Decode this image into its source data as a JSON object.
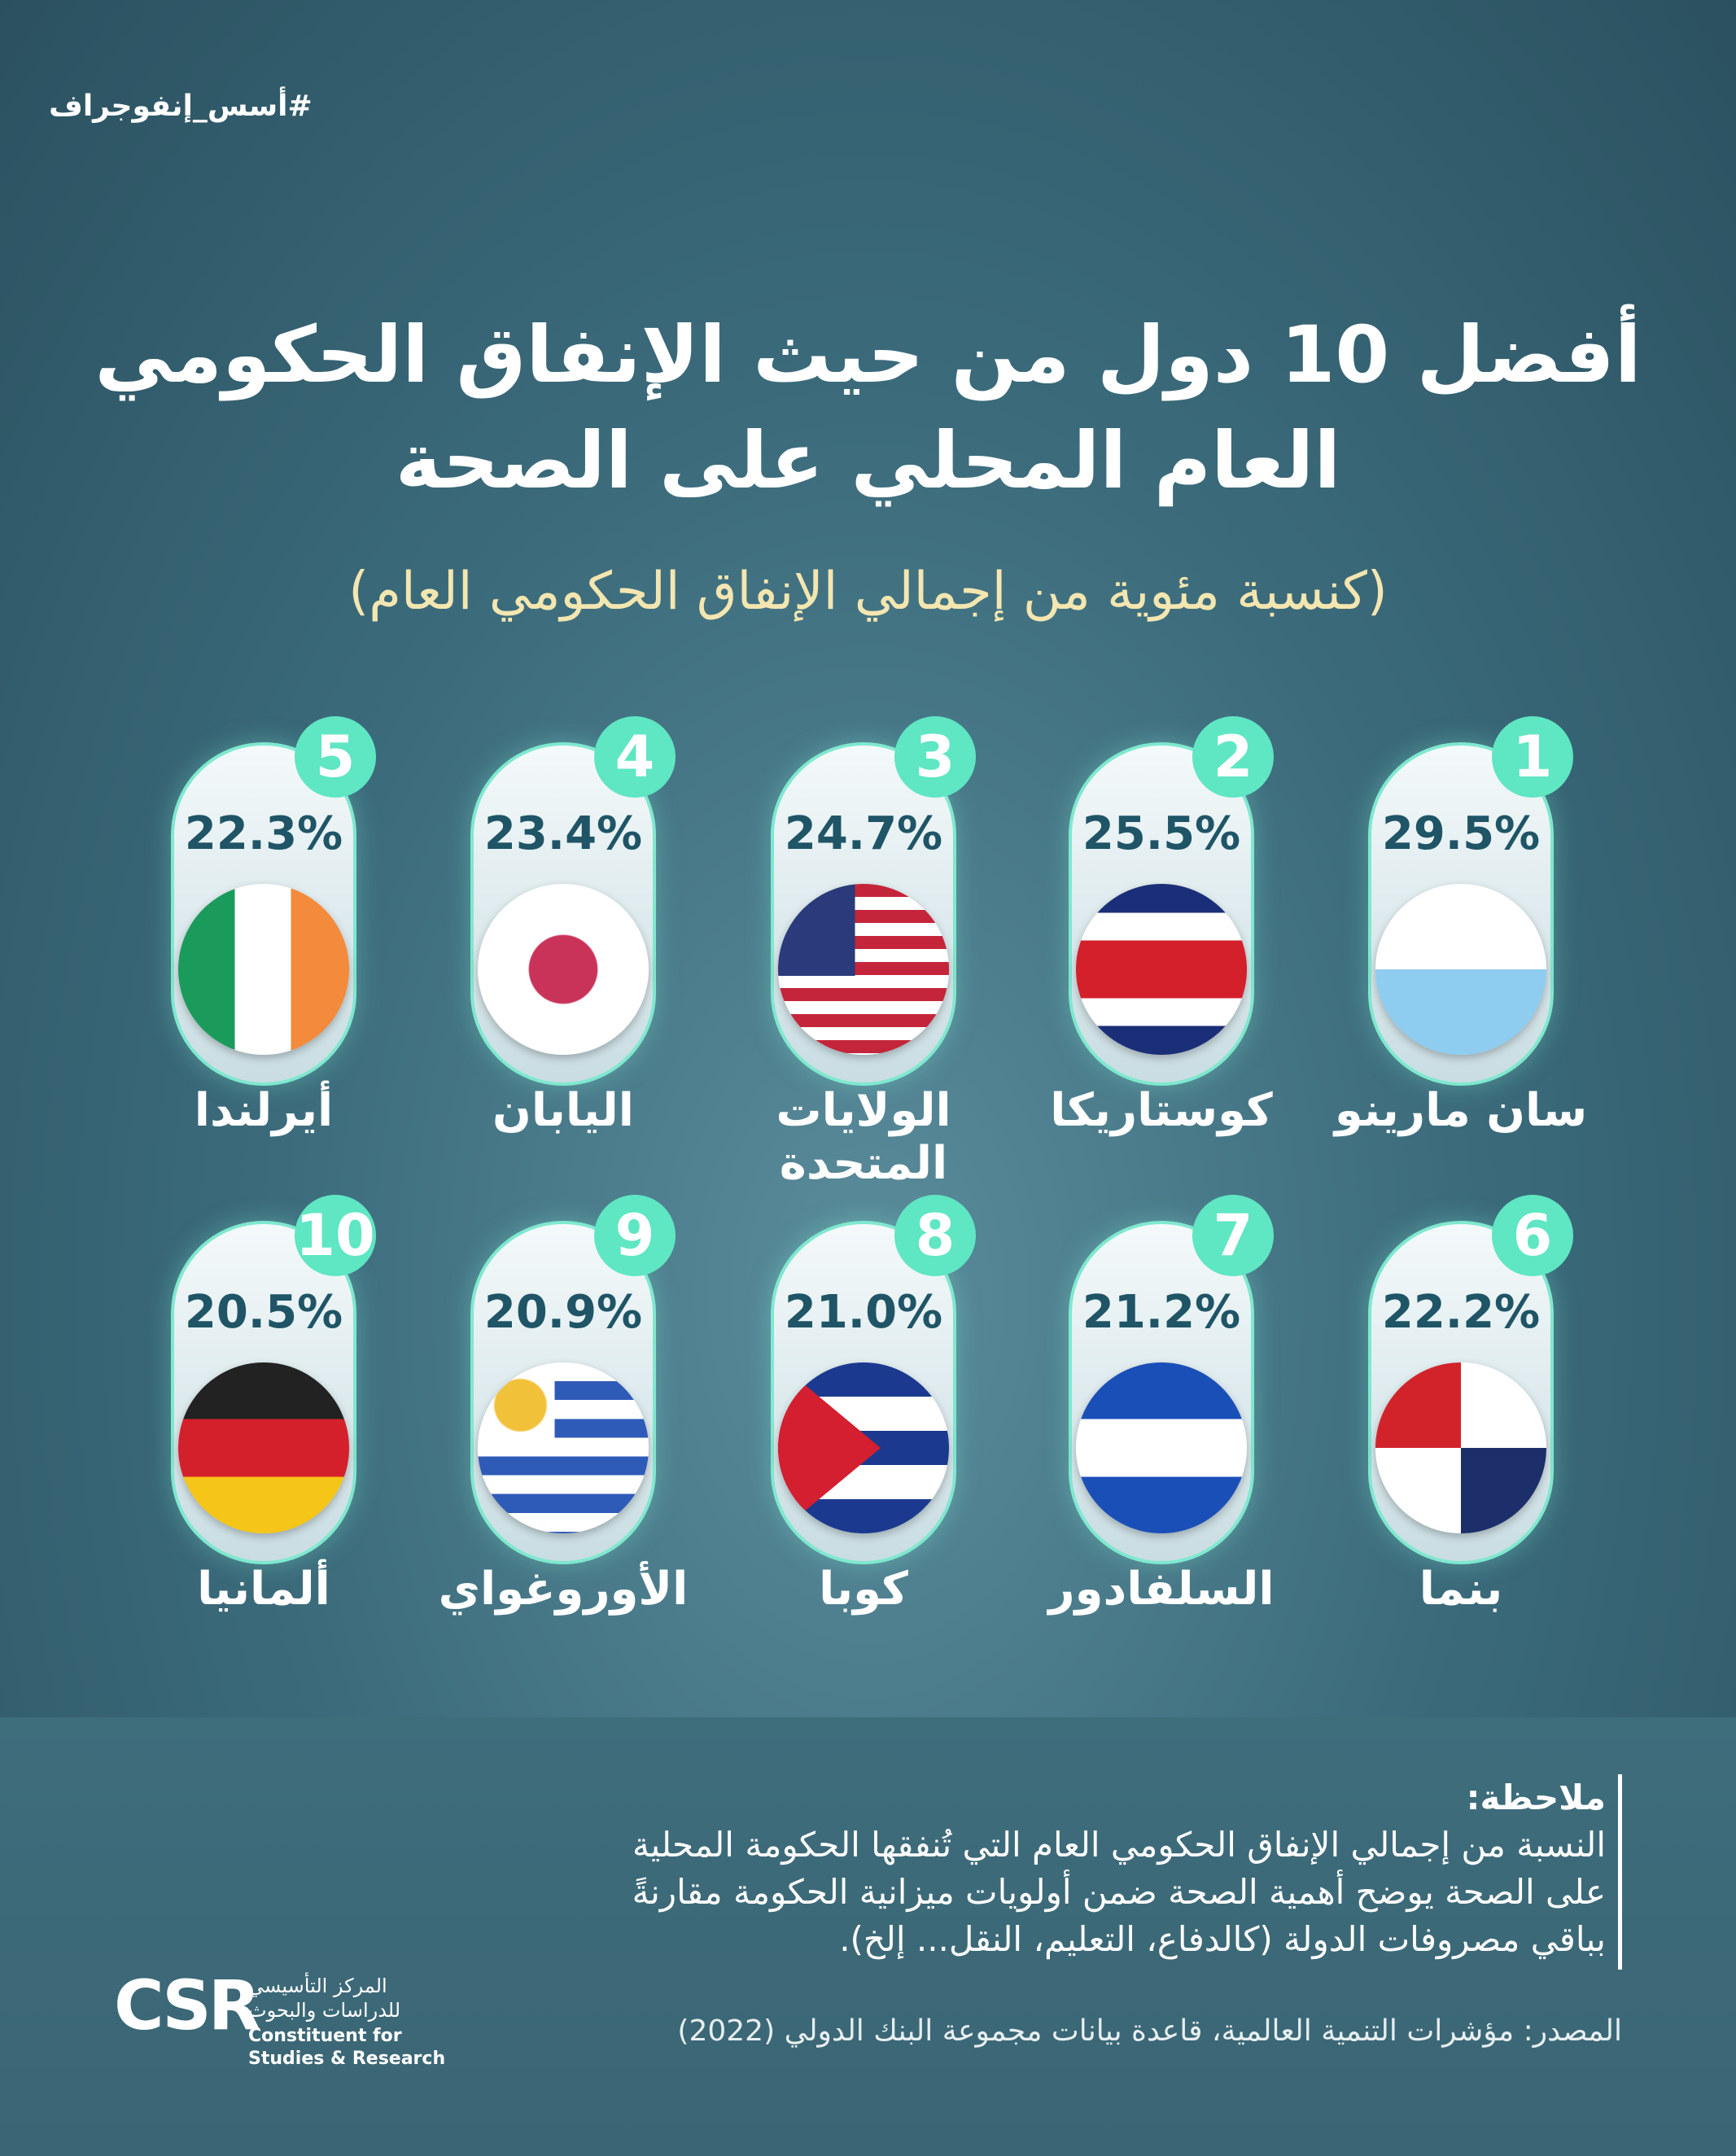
{
  "header": {
    "hashtag": "#أسس_إنفوجراف",
    "title_line1": "أفضل 10 دول من حيث الإنفاق الحكومي",
    "title_line2": "العام المحلي على الصحة",
    "subtitle": "(كنسبة مئوية من إجمالي الإنفاق الحكومي العام)"
  },
  "items": [
    {
      "rank": "1",
      "value": "29.5%",
      "country": "سان مارينو"
    },
    {
      "rank": "2",
      "value": "25.5%",
      "country": "كوستاريكا"
    },
    {
      "rank": "3",
      "value": "24.7%",
      "country": "الولايات المتحدة"
    },
    {
      "rank": "4",
      "value": "23.4%",
      "country": "اليابان"
    },
    {
      "rank": "5",
      "value": "22.3%",
      "country": "أيرلندا"
    },
    {
      "rank": "6",
      "value": "22.2%",
      "country": "بنما"
    },
    {
      "rank": "7",
      "value": "21.2%",
      "country": "السلفادور"
    },
    {
      "rank": "8",
      "value": "21.0%",
      "country": "كوبا"
    },
    {
      "rank": "9",
      "value": "20.9%",
      "country": "الأوروغواي"
    },
    {
      "rank": "10",
      "value": "20.5%",
      "country": "ألمانيا"
    }
  ],
  "note": {
    "heading": "ملاحظة:",
    "lines": [
      "النسبة من إجمالي الإنفاق الحكومي العام التي تُنفقها الحكومة المحلية",
      "على الصحة يوضح أهمية الصحة ضمن أولويات ميزانية الحكومة مقارنةً",
      "بباقي مصروفات الدولة (كالدفاع، التعليم، النقل... إلخ)."
    ]
  },
  "source": "المصدر: مؤشرات التنمية العالمية، قاعدة بيانات مجموعة البنك الدولي (2022)",
  "logo": {
    "mark": "CSR",
    "arabic_lines": [
      "المركز التأسيسي",
      "للدراسات والبحوث"
    ],
    "english_lines": [
      "Constituent for",
      "Studies & Research"
    ]
  }
}
